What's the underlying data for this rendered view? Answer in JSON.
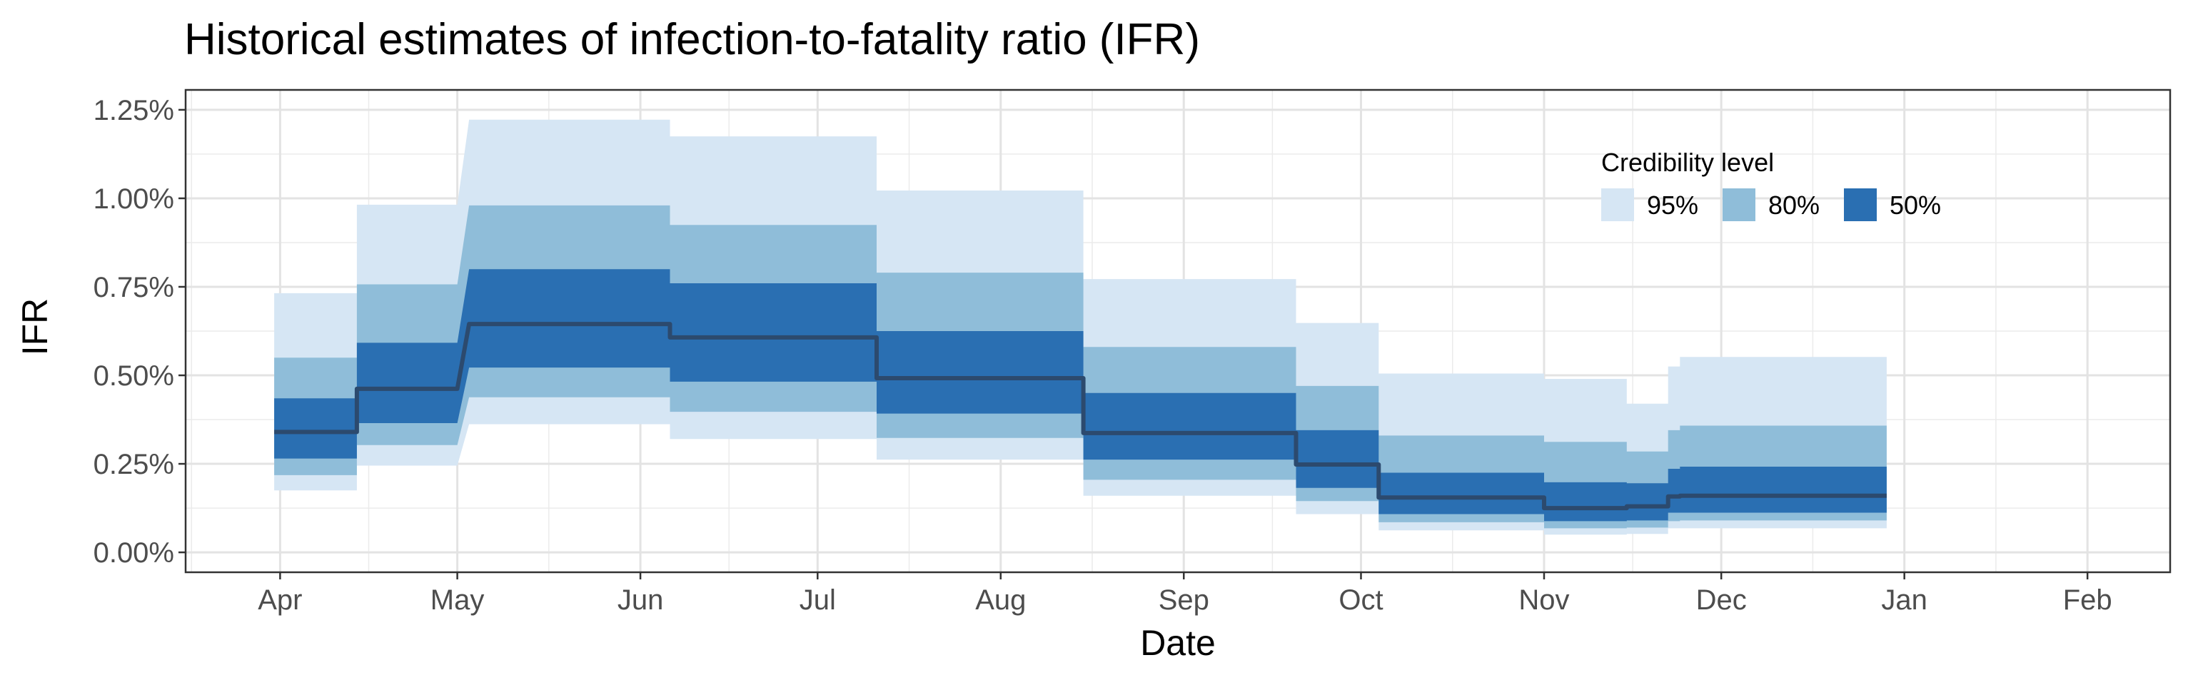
{
  "chart_data": {
    "type": "area",
    "title": "Historical estimates of infection-to-fatality ratio (IFR)",
    "xlabel": "Date",
    "ylabel": "IFR",
    "x_axis_type": "date",
    "xlim": [
      "2020-03-16",
      "2021-02-15"
    ],
    "ylim": [
      0,
      0.0125
    ],
    "x_ticks": [
      "2020-04-01",
      "2020-05-01",
      "2020-06-01",
      "2020-07-01",
      "2020-08-01",
      "2020-09-01",
      "2020-10-01",
      "2020-11-01",
      "2020-12-01",
      "2021-01-01",
      "2021-02-01"
    ],
    "x_tick_labels": [
      "Apr",
      "May",
      "Jun",
      "Jul",
      "Aug",
      "Sep",
      "Oct",
      "Nov",
      "Dec",
      "Jan",
      "Feb"
    ],
    "y_ticks": [
      0,
      0.0025,
      0.005,
      0.0075,
      0.01,
      0.0125
    ],
    "y_tick_labels": [
      "0.00%",
      "0.25%",
      "0.50%",
      "0.75%",
      "1.00%",
      "1.25%"
    ],
    "grid": true,
    "legend": {
      "title": "Credibility level",
      "placement": "top-right",
      "entries": [
        {
          "label": "95%",
          "color": "#d6e6f4"
        },
        {
          "label": "80%",
          "color": "#8fbdd9"
        },
        {
          "label": "50%",
          "color": "#2a6fb2"
        }
      ]
    },
    "line_color": "#2c4a6e",
    "steps": [
      {
        "start": "2020-03-31",
        "end": "2020-04-14",
        "median": 0.0034,
        "lo50": 0.00265,
        "hi50": 0.00435,
        "lo80": 0.00218,
        "hi80": 0.0055,
        "lo95": 0.00175,
        "hi95": 0.00732
      },
      {
        "start": "2020-04-14",
        "end": "2020-05-01",
        "median": 0.00462,
        "lo50": 0.00365,
        "hi50": 0.00592,
        "lo80": 0.00303,
        "hi80": 0.00757,
        "lo95": 0.00245,
        "hi95": 0.00982
      },
      {
        "start": "2020-05-03",
        "end": "2020-06-06",
        "median": 0.00645,
        "lo50": 0.00522,
        "hi50": 0.008,
        "lo80": 0.00438,
        "hi80": 0.0098,
        "lo95": 0.00362,
        "hi95": 0.01222
      },
      {
        "start": "2020-06-06",
        "end": "2020-07-11",
        "median": 0.00607,
        "lo50": 0.00482,
        "hi50": 0.0076,
        "lo80": 0.00397,
        "hi80": 0.00925,
        "lo95": 0.0032,
        "hi95": 0.01175
      },
      {
        "start": "2020-07-11",
        "end": "2020-08-15",
        "median": 0.00492,
        "lo50": 0.00392,
        "hi50": 0.00625,
        "lo80": 0.00323,
        "hi80": 0.0079,
        "lo95": 0.00262,
        "hi95": 0.01022
      },
      {
        "start": "2020-08-15",
        "end": "2020-09-20",
        "median": 0.00337,
        "lo50": 0.00262,
        "hi50": 0.0045,
        "lo80": 0.00205,
        "hi80": 0.0058,
        "lo95": 0.0016,
        "hi95": 0.00772
      },
      {
        "start": "2020-09-20",
        "end": "2020-10-04",
        "median": 0.00248,
        "lo50": 0.00182,
        "hi50": 0.00345,
        "lo80": 0.00145,
        "hi80": 0.0047,
        "lo95": 0.00108,
        "hi95": 0.00648
      },
      {
        "start": "2020-10-04",
        "end": "2020-11-01",
        "median": 0.00155,
        "lo50": 0.00108,
        "hi50": 0.00225,
        "lo80": 0.00085,
        "hi80": 0.0033,
        "lo95": 0.00062,
        "hi95": 0.00505
      },
      {
        "start": "2020-11-01",
        "end": "2020-11-15",
        "median": 0.00125,
        "lo50": 0.00088,
        "hi50": 0.00198,
        "lo80": 0.00068,
        "hi80": 0.00312,
        "lo95": 0.0005,
        "hi95": 0.0049
      },
      {
        "start": "2020-11-15",
        "end": "2020-11-22",
        "median": 0.0013,
        "lo50": 0.0009,
        "hi50": 0.00195,
        "lo80": 0.0007,
        "hi80": 0.00285,
        "lo95": 0.00052,
        "hi95": 0.0042
      },
      {
        "start": "2020-11-22",
        "end": "2020-11-24",
        "median": 0.00158,
        "lo50": 0.00112,
        "hi50": 0.00236,
        "lo80": 0.00088,
        "hi80": 0.00345,
        "lo95": 0.00068,
        "hi95": 0.00525
      },
      {
        "start": "2020-11-24",
        "end": "2020-12-29",
        "median": 0.0016,
        "lo50": 0.00112,
        "hi50": 0.00242,
        "lo80": 0.0009,
        "hi80": 0.00358,
        "lo95": 0.00068,
        "hi95": 0.00552
      }
    ]
  }
}
